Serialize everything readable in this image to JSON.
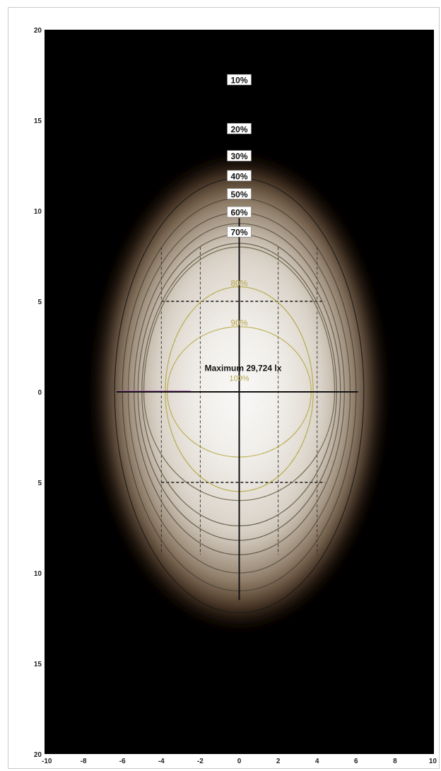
{
  "chart_data": {
    "type": "heatmap",
    "title": "",
    "xlabel": "",
    "ylabel": "",
    "xlim": [
      -10,
      10
    ],
    "ylim": [
      -20,
      20
    ],
    "x_ticks": [
      -10,
      -8,
      -6,
      -4,
      -2,
      0,
      2,
      4,
      6,
      8,
      10
    ],
    "x_tick_labels": [
      "-10",
      "-8",
      "-6",
      "-4",
      "-2",
      "0",
      "2",
      "4",
      "6",
      "8",
      "10"
    ],
    "y_ticks": [
      20,
      15,
      10,
      5,
      0,
      -5,
      -10,
      -15,
      -20
    ],
    "y_tick_labels": [
      "20",
      "15",
      "10",
      "5",
      "0",
      "5",
      "10",
      "15",
      "20"
    ],
    "maximum_label": "Maximum 29,724 lx",
    "maximum_point": [
      0,
      0
    ],
    "maximum_percent_label": "100%",
    "isolines": [
      {
        "label": "10%",
        "percent": 10,
        "label_y": 17.2,
        "rx": 6.4,
        "ry_top": 11.8,
        "ry_bottom": 12.2,
        "color": "#1a1a1a"
      },
      {
        "label": "20%",
        "percent": 20,
        "label_y": 14.5,
        "rx": 6.0,
        "ry_top": 10.7,
        "ry_bottom": 11.0,
        "color": "#4a4438"
      },
      {
        "label": "30%",
        "percent": 30,
        "label_y": 13.0,
        "rx": 5.7,
        "ry_top": 9.9,
        "ry_bottom": 10.0,
        "color": "#5a5244"
      },
      {
        "label": "40%",
        "percent": 40,
        "label_y": 11.9,
        "rx": 5.4,
        "ry_top": 9.3,
        "ry_bottom": 9.0,
        "color": "#5e5546"
      },
      {
        "label": "50%",
        "percent": 50,
        "label_y": 10.9,
        "rx": 5.2,
        "ry_top": 8.7,
        "ry_bottom": 8.2,
        "color": "#605746"
      },
      {
        "label": "60%",
        "percent": 60,
        "label_y": 9.9,
        "rx": 5.0,
        "ry_top": 8.2,
        "ry_bottom": 7.4,
        "color": "#625846"
      },
      {
        "label": "70%",
        "percent": 70,
        "label_y": 8.8,
        "rx": 4.9,
        "ry_top": 8.0,
        "ry_bottom": 6.0,
        "color": "#6c6446"
      },
      {
        "label": "80%",
        "percent": 80,
        "label_y": 6.0,
        "rx": 3.8,
        "ry_top": 5.8,
        "ry_bottom": 5.5,
        "color": "#b3a843"
      },
      {
        "label": "90%",
        "percent": 90,
        "label_y": 3.8,
        "rx": 3.7,
        "ry_top": 3.6,
        "ry_bottom": 3.6,
        "color": "#b9ac4c"
      }
    ],
    "light_spot": {
      "x_extent": [
        -6.5,
        6.5
      ],
      "y_extent": [
        -12,
        12
      ]
    },
    "grid": {
      "x": [
        -4,
        -2,
        2,
        4
      ],
      "y": [
        5,
        -5
      ],
      "style": "dashed"
    },
    "crosshair": {
      "horizontal_x": [
        -6.3,
        6.1
      ],
      "vertical_y": [
        -11.5,
        9.6
      ]
    },
    "colors": {
      "background": "#000000",
      "glow_center": "#ffffff",
      "glow_mid": "#d8cfc3",
      "glow_edge": "#3a2516",
      "grid": "#1a1a1a",
      "frame": "#c9c9c9"
    }
  }
}
